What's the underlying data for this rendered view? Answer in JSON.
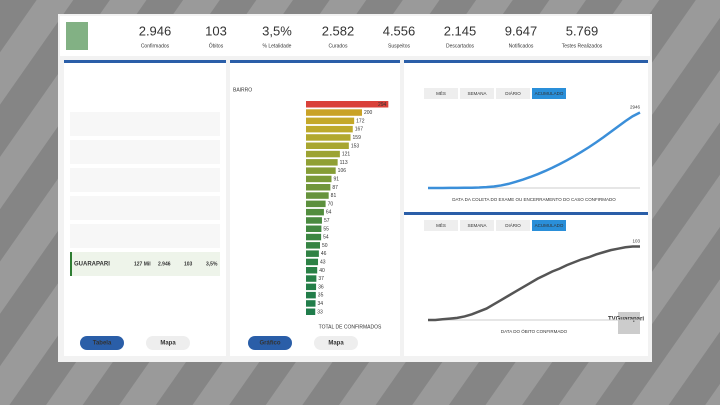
{
  "kpis": [
    {
      "value": "2.946",
      "label": "Confirmados"
    },
    {
      "value": "103",
      "label": "Óbitos"
    },
    {
      "value": "3,5%",
      "label": "% Letalidade"
    },
    {
      "value": "2.582",
      "label": "Curados"
    },
    {
      "value": "4.556",
      "label": "Suspeitos"
    },
    {
      "value": "2.145",
      "label": "Descartados"
    },
    {
      "value": "9.647",
      "label": "Notificados"
    },
    {
      "value": "5.769",
      "label": "Testes Realizados"
    }
  ],
  "table": {
    "highlight_row": [
      "GUARAPARI",
      "127 Mil",
      "2.946",
      "103",
      "3,5%"
    ]
  },
  "buttons": {
    "left": [
      "Tabela",
      "Mapa"
    ],
    "middle": [
      "Gráfico",
      "Mapa"
    ]
  },
  "brand": {
    "text": "TVGuarapari"
  },
  "chart_data": [
    {
      "type": "bar",
      "orientation": "horizontal",
      "title": "BAIRRO",
      "x_label": "TOTAL DE CONFIRMADOS",
      "xlim": [
        0,
        300
      ],
      "values": [
        294,
        200,
        172,
        167,
        159,
        153,
        121,
        113,
        106,
        91,
        87,
        81,
        70,
        64,
        57,
        55,
        54,
        50,
        46,
        43,
        40,
        37,
        36,
        35,
        34,
        33
      ],
      "colors": [
        "#d9413a",
        "#c9a227",
        "#c4a82a",
        "#bda92c",
        "#b2a82e",
        "#a8a630",
        "#9ca332",
        "#90a034",
        "#859d36",
        "#7a9a38",
        "#70963a",
        "#66933c",
        "#5c903d",
        "#528d3e",
        "#4a8a40",
        "#428841",
        "#3b8642",
        "#358443",
        "#308244",
        "#2c8145",
        "#298046",
        "#267f47",
        "#247e48",
        "#227d49",
        "#217d4a",
        "#207c4b"
      ]
    },
    {
      "type": "line",
      "tabs": [
        "MÊS",
        "SEMANA",
        "DIÁRIO",
        "ACUMULADO"
      ],
      "selected_tab": 3,
      "x_label": "DATA DA COLETA DO EXAME OU ENCERRAMENTO DO CASO CONFIRMADO",
      "color": "#3b8fd9",
      "ylim": [
        0,
        3200
      ],
      "values": [
        1,
        1,
        2,
        3,
        5,
        8,
        12,
        20,
        35,
        60,
        100,
        160,
        240,
        330,
        430,
        540,
        660,
        790,
        930,
        1080,
        1240,
        1410,
        1590,
        1780,
        1980,
        2190,
        2400,
        2610,
        2800,
        2946
      ]
    },
    {
      "type": "line",
      "tabs": [
        "MÊS",
        "SEMANA",
        "DIÁRIO",
        "ACUMULADO"
      ],
      "selected_tab": 3,
      "x_label": "DATA DO ÓBITO CONFIRMADO",
      "color": "#555555",
      "ylim": [
        0,
        115
      ],
      "values": [
        0,
        0,
        1,
        2,
        3,
        5,
        8,
        12,
        16,
        22,
        28,
        34,
        40,
        46,
        52,
        58,
        63,
        68,
        72,
        77,
        81,
        85,
        88,
        92,
        95,
        98,
        100,
        102,
        103,
        103
      ]
    }
  ]
}
